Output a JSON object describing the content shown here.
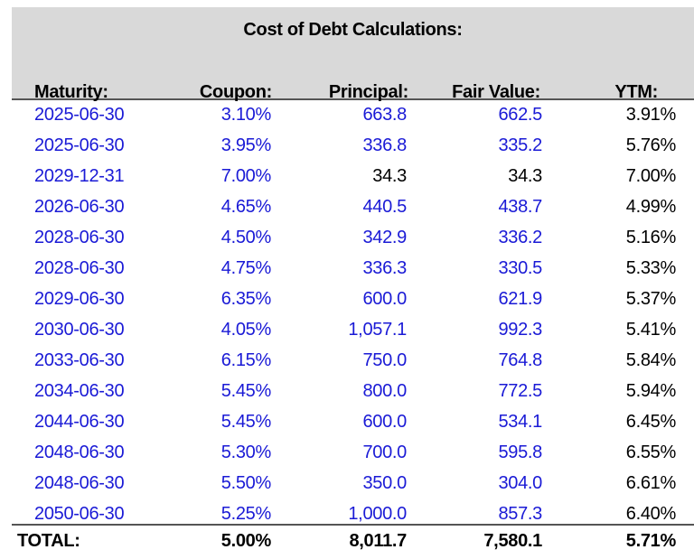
{
  "title": "Cost of Debt Calculations:",
  "colors": {
    "header_bg": "#d9d9d9",
    "input": "#1a1ad6",
    "formula": "#000000"
  },
  "headers": [
    "Maturity:",
    "Coupon:",
    "Principal:",
    "Fair Value:",
    "YTM:"
  ],
  "rows": [
    {
      "maturity": "2025-06-30",
      "coupon": "3.10%",
      "principal": "663.8",
      "fair_value": "662.5",
      "ytm": "3.91%",
      "principal_input": true,
      "fair_value_input": true
    },
    {
      "maturity": "2025-06-30",
      "coupon": "3.95%",
      "principal": "336.8",
      "fair_value": "335.2",
      "ytm": "5.76%",
      "principal_input": true,
      "fair_value_input": true
    },
    {
      "maturity": "2029-12-31",
      "coupon": "7.00%",
      "principal": "34.3",
      "fair_value": "34.3",
      "ytm": "7.00%",
      "principal_input": false,
      "fair_value_input": false
    },
    {
      "maturity": "2026-06-30",
      "coupon": "4.65%",
      "principal": "440.5",
      "fair_value": "438.7",
      "ytm": "4.99%",
      "principal_input": true,
      "fair_value_input": true
    },
    {
      "maturity": "2028-06-30",
      "coupon": "4.50%",
      "principal": "342.9",
      "fair_value": "336.2",
      "ytm": "5.16%",
      "principal_input": true,
      "fair_value_input": true
    },
    {
      "maturity": "2028-06-30",
      "coupon": "4.75%",
      "principal": "336.3",
      "fair_value": "330.5",
      "ytm": "5.33%",
      "principal_input": true,
      "fair_value_input": true
    },
    {
      "maturity": "2029-06-30",
      "coupon": "6.35%",
      "principal": "600.0",
      "fair_value": "621.9",
      "ytm": "5.37%",
      "principal_input": true,
      "fair_value_input": true
    },
    {
      "maturity": "2030-06-30",
      "coupon": "4.05%",
      "principal": "1,057.1",
      "fair_value": "992.3",
      "ytm": "5.41%",
      "principal_input": true,
      "fair_value_input": true
    },
    {
      "maturity": "2033-06-30",
      "coupon": "6.15%",
      "principal": "750.0",
      "fair_value": "764.8",
      "ytm": "5.84%",
      "principal_input": true,
      "fair_value_input": true
    },
    {
      "maturity": "2034-06-30",
      "coupon": "5.45%",
      "principal": "800.0",
      "fair_value": "772.5",
      "ytm": "5.94%",
      "principal_input": true,
      "fair_value_input": true
    },
    {
      "maturity": "2044-06-30",
      "coupon": "5.45%",
      "principal": "600.0",
      "fair_value": "534.1",
      "ytm": "6.45%",
      "principal_input": true,
      "fair_value_input": true
    },
    {
      "maturity": "2048-06-30",
      "coupon": "5.30%",
      "principal": "700.0",
      "fair_value": "595.8",
      "ytm": "6.55%",
      "principal_input": true,
      "fair_value_input": true
    },
    {
      "maturity": "2048-06-30",
      "coupon": "5.50%",
      "principal": "350.0",
      "fair_value": "304.0",
      "ytm": "6.61%",
      "principal_input": true,
      "fair_value_input": true
    },
    {
      "maturity": "2050-06-30",
      "coupon": "5.25%",
      "principal": "1,000.0",
      "fair_value": "857.3",
      "ytm": "6.40%",
      "principal_input": true,
      "fair_value_input": true
    }
  ],
  "total": {
    "label": "TOTAL:",
    "coupon": "5.00%",
    "principal": "8,011.7",
    "fair_value": "7,580.1",
    "ytm": "5.71%"
  }
}
